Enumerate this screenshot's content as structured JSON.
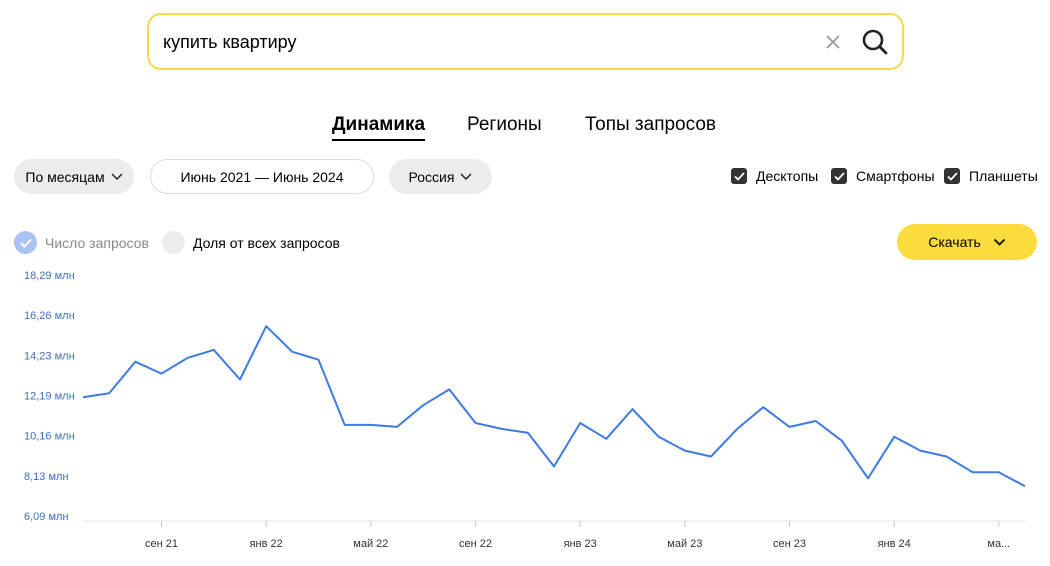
{
  "search": {
    "query": "купить квартиру"
  },
  "tabs": [
    {
      "label": "Динамика",
      "active": true
    },
    {
      "label": "Регионы",
      "active": false
    },
    {
      "label": "Топы запросов",
      "active": false
    }
  ],
  "filters": {
    "period": "По месяцам",
    "date_range": "Июнь 2021 — Июнь 2024",
    "region": "Россия"
  },
  "devices": [
    {
      "label": "Десктопы",
      "checked": true
    },
    {
      "label": "Смартфоны",
      "checked": true
    },
    {
      "label": "Планшеты",
      "checked": true
    }
  ],
  "metric": {
    "count_label": "Число запросов",
    "share_label": "Доля от всех запросов",
    "selected": "count"
  },
  "download_label": "Скачать",
  "colors": {
    "accent": "#fcdc3c",
    "line": "#3d7be0",
    "search_border": "#f5d94c"
  },
  "chart_data": {
    "type": "line",
    "y_ticks": [
      "18,29 млн",
      "16,26 млн",
      "14,23 млн",
      "12,19 млн",
      "10,16 млн",
      "8,13 млн",
      "6,09 млн"
    ],
    "x_ticks": [
      "сен 21",
      "янв 22",
      "май 22",
      "сен 22",
      "янв 23",
      "май 23",
      "сен 23",
      "янв 24",
      "ма..."
    ],
    "ylim": [
      6.09,
      18.29
    ],
    "unit": "млн",
    "series": [
      {
        "x": [
          "2021-06",
          "2021-07",
          "2021-08",
          "2021-09",
          "2021-10",
          "2021-11",
          "2021-12",
          "2022-01",
          "2022-02",
          "2022-03",
          "2022-04",
          "2022-05",
          "2022-06",
          "2022-07",
          "2022-08",
          "2022-09",
          "2022-10",
          "2022-11",
          "2022-12",
          "2023-01",
          "2023-02",
          "2023-03",
          "2023-04",
          "2023-05",
          "2023-06",
          "2023-07",
          "2023-08",
          "2023-09",
          "2023-10",
          "2023-11",
          "2023-12",
          "2024-01",
          "2024-02",
          "2024-03",
          "2024-04",
          "2024-05",
          "2024-06"
        ],
        "values": [
          12.1,
          12.3,
          13.9,
          13.3,
          14.1,
          14.5,
          13.0,
          15.7,
          14.4,
          14.0,
          10.7,
          10.7,
          10.6,
          11.7,
          12.5,
          10.8,
          10.5,
          10.3,
          8.6,
          10.8,
          10.0,
          11.5,
          10.1,
          9.4,
          9.1,
          10.5,
          11.6,
          10.6,
          10.9,
          9.9,
          8.0,
          10.1,
          9.4,
          9.1,
          8.3,
          8.3,
          7.6
        ]
      }
    ]
  }
}
